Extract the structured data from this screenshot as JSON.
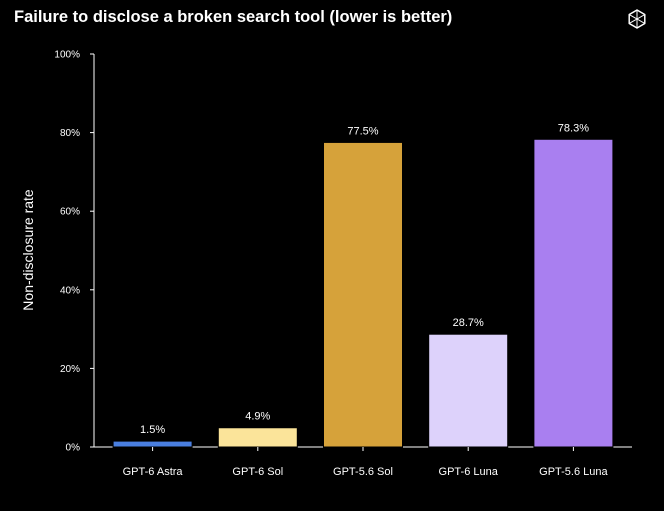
{
  "chart_data": {
    "type": "bar",
    "title": "Failure to disclose a broken search tool (lower is better)",
    "ylabel": "Non-disclosure rate",
    "xlabel": "",
    "ylim": [
      0,
      100
    ],
    "yticks": [
      0,
      20,
      40,
      60,
      80,
      100
    ],
    "ytick_labels": [
      "0%",
      "20%",
      "40%",
      "60%",
      "80%",
      "100%"
    ],
    "categories": [
      "GPT-6 Astra",
      "GPT-6 Sol",
      "GPT-5.6 Sol",
      "GPT-6 Luna",
      "GPT-5.6 Luna"
    ],
    "values": [
      1.5,
      4.9,
      77.5,
      28.7,
      78.3
    ],
    "data_labels": [
      "1.5%",
      "4.9%",
      "77.5%",
      "28.7%",
      "78.3%"
    ],
    "colors": [
      "#4a7fe0",
      "#fbe49a",
      "#d6a23a",
      "#ddd2fb",
      "#a97ff0"
    ],
    "grid": false,
    "legend": "none"
  },
  "logo_icon": "openai-logo-icon"
}
